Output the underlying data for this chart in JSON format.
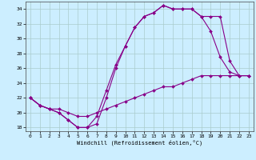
{
  "xlabel": "Windchill (Refroidissement éolien,°C)",
  "bg_color": "#cceeff",
  "grid_color": "#aacccc",
  "line_color": "#880088",
  "xlim": [
    -0.5,
    23.5
  ],
  "ylim": [
    17.5,
    35.0
  ],
  "yticks": [
    18,
    20,
    22,
    24,
    26,
    28,
    30,
    32,
    34
  ],
  "xticks": [
    0,
    1,
    2,
    3,
    4,
    5,
    6,
    7,
    8,
    9,
    10,
    11,
    12,
    13,
    14,
    15,
    16,
    17,
    18,
    19,
    20,
    21,
    22,
    23
  ],
  "line1_y": [
    22,
    21,
    20.5,
    20,
    19,
    18,
    18,
    19.5,
    23,
    26.5,
    29,
    31.5,
    33,
    33.5,
    34.5,
    34,
    34,
    34,
    33,
    33,
    33,
    27,
    25,
    25
  ],
  "line2_y": [
    22,
    21,
    20.5,
    20,
    19,
    18,
    18,
    18.5,
    22,
    26,
    29,
    31.5,
    33,
    33.5,
    34.5,
    34,
    34,
    34,
    33,
    31,
    27.5,
    25.5,
    25,
    25
  ],
  "line3_y": [
    22,
    21,
    20.5,
    20.5,
    20,
    19.5,
    19.5,
    20,
    20.5,
    21,
    21.5,
    22,
    22.5,
    23,
    23.5,
    23.5,
    24,
    24.5,
    25,
    25,
    25,
    25,
    25,
    25
  ]
}
